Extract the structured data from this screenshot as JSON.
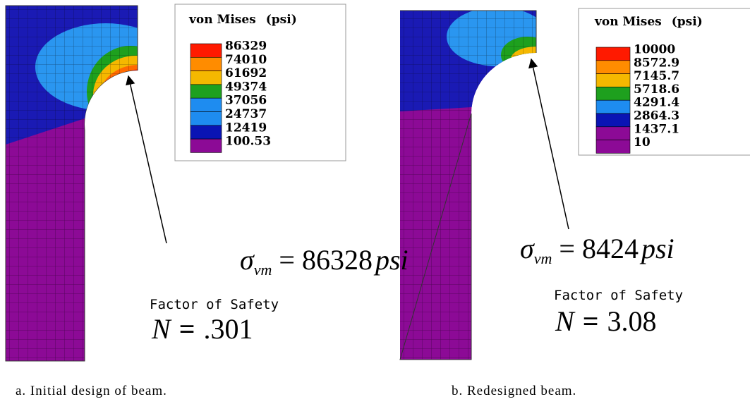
{
  "panels": [
    {
      "legend": {
        "title": "von Mises",
        "unit": "(psi)",
        "levels": [
          "86329",
          "74010",
          "61692",
          "49374",
          "37056",
          "24737",
          "12419",
          "100.53"
        ],
        "colors": [
          "#ff1a00",
          "#ff8c00",
          "#f5b800",
          "#1ea01e",
          "#1e8cf0",
          "#1e8cf0",
          "#0a14b4",
          "#8c0a96"
        ]
      },
      "equation": {
        "symbol": "σ",
        "subscript": "vm",
        "relation": "=",
        "value": "86328",
        "unit": "psi"
      },
      "safety": {
        "label": "Factor of Safety",
        "symbol": "N",
        "relation": "=",
        "value": ".301"
      },
      "caption": "a. Initial design of beam."
    },
    {
      "legend": {
        "title": "von Mises",
        "unit": "(psi)",
        "levels": [
          "10000",
          "8572.9",
          "7145.7",
          "5718.6",
          "4291.4",
          "2864.3",
          "1437.1",
          "10"
        ],
        "colors": [
          "#ff1a00",
          "#ff8c00",
          "#f5b800",
          "#1ea01e",
          "#1e8cf0",
          "#0a14b4",
          "#8c0a96",
          "#8c0a96"
        ]
      },
      "equation": {
        "symbol": "σ",
        "subscript": "vm",
        "relation": "=",
        "value": "8424",
        "unit": "psi"
      },
      "safety": {
        "label": "Factor of Safety",
        "symbol": "N",
        "relation": "=",
        "value": "3.08"
      },
      "caption": "b. Redesigned beam."
    }
  ]
}
